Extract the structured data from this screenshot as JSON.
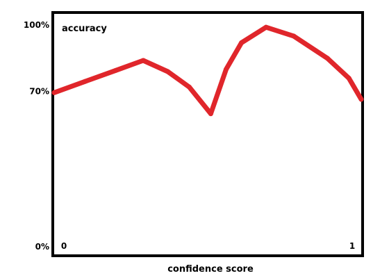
{
  "chart_data": {
    "type": "line",
    "title": "",
    "xlabel": "confidence score",
    "ylabel": "accuracy",
    "xlim": [
      0,
      1
    ],
    "ylim": [
      0,
      100
    ],
    "x_ticks": [
      {
        "value": 0,
        "label": "0"
      },
      {
        "value": 1,
        "label": "1"
      }
    ],
    "y_ticks": [
      {
        "value": 0,
        "label": "0%"
      },
      {
        "value": 70,
        "label": "70%"
      },
      {
        "value": 100,
        "label": "100%"
      }
    ],
    "grid": false,
    "legend": "none",
    "series": [
      {
        "color": "#e0262b",
        "points": [
          {
            "x": 0.0,
            "y": 69.5
          },
          {
            "x": 0.1,
            "y": 74.5
          },
          {
            "x": 0.2,
            "y": 79.5
          },
          {
            "x": 0.29,
            "y": 84
          },
          {
            "x": 0.37,
            "y": 79
          },
          {
            "x": 0.44,
            "y": 72
          },
          {
            "x": 0.51,
            "y": 60
          },
          {
            "x": 0.56,
            "y": 80
          },
          {
            "x": 0.61,
            "y": 92
          },
          {
            "x": 0.69,
            "y": 99
          },
          {
            "x": 0.78,
            "y": 95
          },
          {
            "x": 0.89,
            "y": 85
          },
          {
            "x": 0.96,
            "y": 76
          },
          {
            "x": 1.0,
            "y": 66.5
          }
        ]
      }
    ]
  }
}
